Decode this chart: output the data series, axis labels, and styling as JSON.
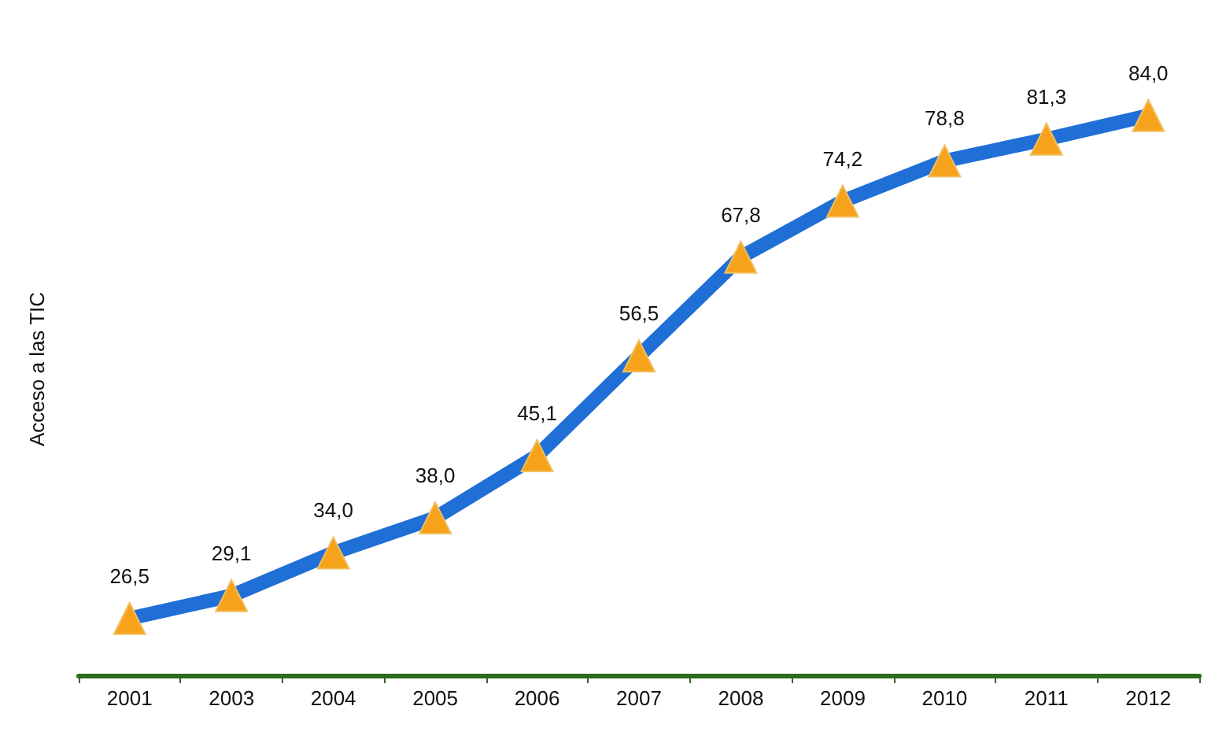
{
  "chart_data": {
    "type": "line",
    "ylabel": "Acceso a las TIC",
    "categories": [
      "2001",
      "2003",
      "2004",
      "2005",
      "2006",
      "2007",
      "2008",
      "2009",
      "2010",
      "2011",
      "2012"
    ],
    "series": [
      {
        "color": "#1f6fd6",
        "values": [
          26.5,
          29.1,
          34.0,
          38.0,
          45.1,
          56.5,
          67.8,
          74.2,
          78.8,
          81.3,
          84.0
        ],
        "value_labels": [
          "26,5",
          "29,1",
          "34,0",
          "38,0",
          "45,1",
          "56,5",
          "67,8",
          "74,2",
          "78,8",
          "81,3",
          "84,0"
        ]
      }
    ],
    "marker": "triangle",
    "line_style": "solid",
    "grid": false,
    "tick_labels": "x"
  }
}
